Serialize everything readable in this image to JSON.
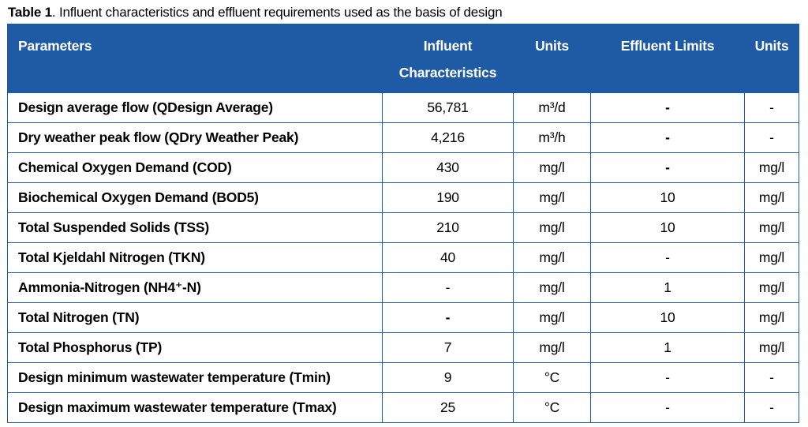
{
  "caption": {
    "lead": "Table 1",
    "text": ". Influent characteristics and effluent requirements used as the basis of design"
  },
  "table": {
    "headers": {
      "parameters": "Parameters",
      "influent_line1": "Influent",
      "influent_line2": "Characteristics",
      "units1": "Units",
      "effluent": "Effluent Limits",
      "units2": "Units"
    },
    "rows": [
      {
        "parameter": "Design average flow (QDesign Average)",
        "influent": "56,781",
        "units1": "m³/d",
        "effluent": "-",
        "units2": "-"
      },
      {
        "parameter": "Dry weather peak flow (QDry Weather Peak)",
        "influent": "4,216",
        "units1": "m³/h",
        "effluent": "-",
        "units2": "-"
      },
      {
        "parameter": "Chemical Oxygen Demand (COD)",
        "influent": "430",
        "units1": "mg/l",
        "effluent": "-",
        "units2": "mg/l"
      },
      {
        "parameter": "Biochemical Oxygen Demand (BOD5)",
        "influent": "190",
        "units1": "mg/l",
        "effluent": "10",
        "units2": "mg/l"
      },
      {
        "parameter": "Total Suspended Solids (TSS)",
        "influent": "210",
        "units1": "mg/l",
        "effluent": "10",
        "units2": "mg/l"
      },
      {
        "parameter": "Total Kjeldahl Nitrogen (TKN)",
        "influent": "40",
        "units1": "mg/l",
        "effluent": "-",
        "units2": "mg/l"
      },
      {
        "parameter": "Ammonia-Nitrogen (NH4⁺-N)",
        "influent": "-",
        "units1": "mg/l",
        "effluent": "1",
        "units2": "mg/l"
      },
      {
        "parameter": "Total Nitrogen (TN)",
        "influent": "-",
        "units1": "mg/l",
        "effluent": "10",
        "units2": "mg/l"
      },
      {
        "parameter": "Total Phosphorus (TP)",
        "influent": "7",
        "units1": "mg/l",
        "effluent": "1",
        "units2": "mg/l"
      },
      {
        "parameter": "Design minimum wastewater temperature (Tmin)",
        "influent": "9",
        "units1": "°C",
        "effluent": "-",
        "units2": "-"
      },
      {
        "parameter": "Design maximum wastewater temperature (Tmax)",
        "influent": "25",
        "units1": "°C",
        "effluent": "-",
        "units2": "-"
      }
    ]
  },
  "colors": {
    "header_background": "#1f5ba5",
    "header_text": "#ffffff",
    "grid_line": "#1f5ba5"
  }
}
